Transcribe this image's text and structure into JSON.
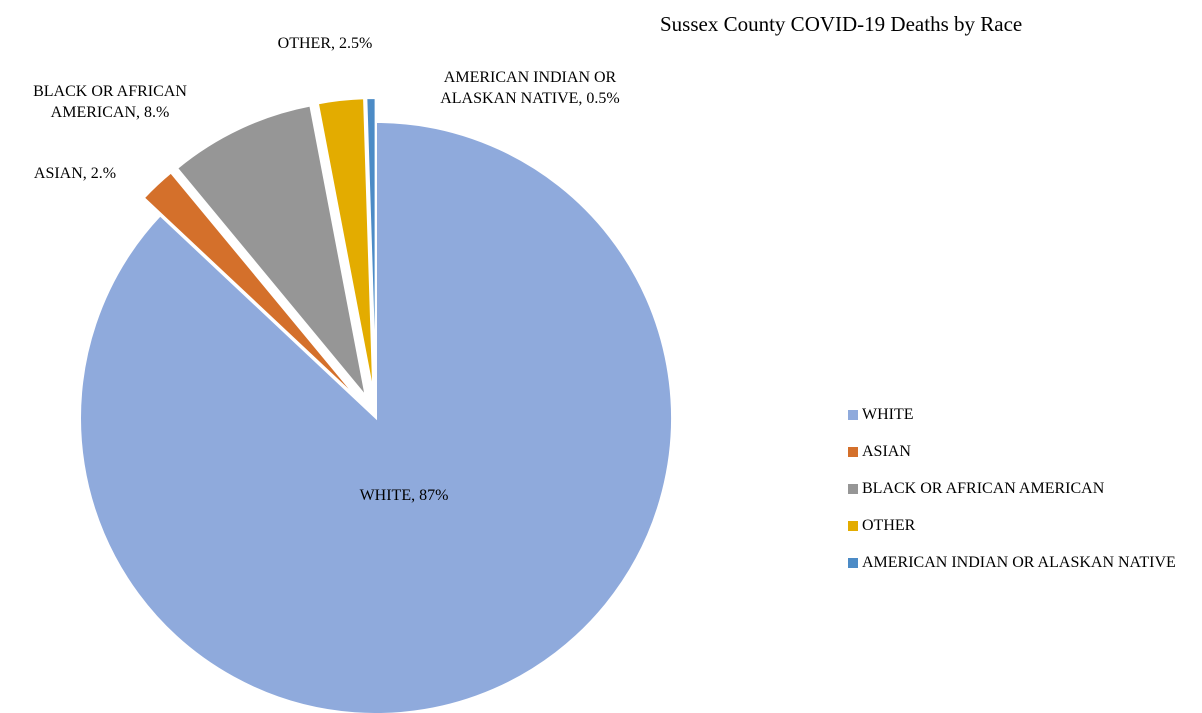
{
  "chart_data": {
    "type": "pie",
    "title": "Sussex County COVID-19 Deaths by Race",
    "slices": [
      {
        "name": "WHITE",
        "value": 87,
        "label_lines": [
          "WHITE, 87%"
        ],
        "color": "#8faadc"
      },
      {
        "name": "ASIAN",
        "value": 2.0,
        "label_lines": [
          "ASIAN, 2.%"
        ],
        "color": "#d4702b"
      },
      {
        "name": "BLACK OR AFRICAN AMERICAN",
        "value": 8.0,
        "label_lines": [
          "BLACK OR AFRICAN",
          "AMERICAN, 8.%"
        ],
        "color": "#969696"
      },
      {
        "name": "OTHER",
        "value": 2.5,
        "label_lines": [
          "OTHER, 2.5%"
        ],
        "color": "#e3ac00"
      },
      {
        "name": "AMERICAN INDIAN OR ALASKAN NATIVE",
        "value": 0.5,
        "label_lines": [
          "AMERICAN INDIAN OR",
          "ALASKAN NATIVE, 0.5%"
        ],
        "color": "#4c8bc6"
      }
    ],
    "legend": {
      "position": "right",
      "items": [
        "WHITE",
        "ASIAN",
        "BLACK OR AFRICAN AMERICAN",
        "OTHER",
        "AMERICAN INDIAN OR ALASKAN NATIVE"
      ]
    }
  }
}
